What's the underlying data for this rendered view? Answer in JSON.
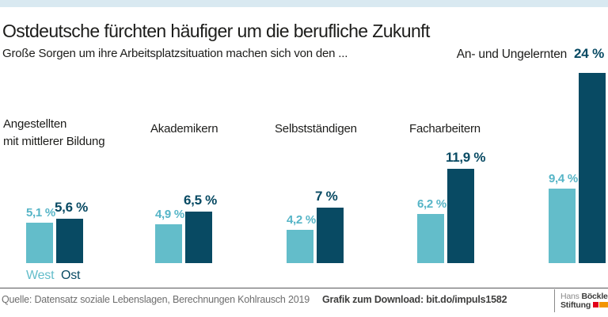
{
  "header": {
    "title": "Ostdeutsche fürchten häufiger um die berufliche Zukunft",
    "subtitle": "Große Sorgen um ihre Arbeitsplatzsituation machen sich von den ...",
    "top_right_label": "An- und Ungelernten",
    "top_right_value": "24 %"
  },
  "chart_data": {
    "type": "bar",
    "categories": [
      "Angestellten mit mittlerer Bildung",
      "Akademikern",
      "Selbstständigen",
      "Facharbeitern",
      "An- und Ungelernten"
    ],
    "series": [
      {
        "name": "West",
        "values": [
          5.1,
          4.9,
          4.2,
          6.2,
          9.4
        ]
      },
      {
        "name": "Ost",
        "values": [
          5.6,
          6.5,
          7.0,
          11.9,
          24.0
        ]
      }
    ],
    "unit": "%",
    "ylim": [
      0,
      24
    ],
    "grid": false,
    "legend_position": "below-first-group",
    "title": "Ostdeutsche fürchten häufiger um die berufliche Zukunft",
    "xlabel": "",
    "ylabel": ""
  },
  "groups": [
    {
      "label_line1": "Angestellten",
      "label_line2": "mit mittlerer Bildung",
      "west_label": "5,1 %",
      "ost_label": "5,6 %"
    },
    {
      "label_line1": "Akademikern",
      "west_label": "4,9 %",
      "ost_label": "6,5 %"
    },
    {
      "label_line1": "Selbstständigen",
      "west_label": "4,2 %",
      "ost_label": "7 %"
    },
    {
      "label_line1": "Facharbeitern",
      "west_label": "6,2 %",
      "ost_label": "11,9 %"
    },
    {
      "west_label": "9,4 %"
    }
  ],
  "legend": {
    "west": "West",
    "ost": "Ost"
  },
  "footer": {
    "source": "Quelle: Datensatz soziale Lebenslagen, Berechnungen Kohlrausch 2019",
    "download": "Grafik zum Download: bit.do/impuls1582",
    "logo_word1": "Hans",
    "logo_word2": "Böckler",
    "logo_word3": "Stiftung"
  },
  "colors": {
    "west_bar": "#63bdca",
    "ost_bar": "#084a63",
    "top_strip": "#d9e9f1",
    "logo_red": "#e2001a",
    "logo_orange": "#f29400"
  }
}
